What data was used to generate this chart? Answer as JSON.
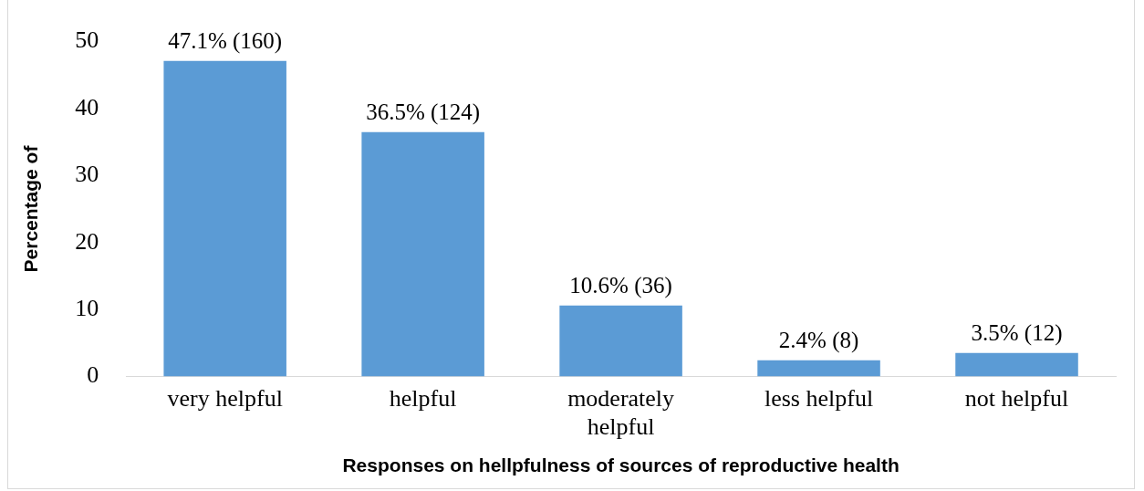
{
  "chart_data": {
    "type": "bar",
    "xlabel": "Responses on hellpfulness of sources of reproductive health",
    "ylabel": "Percentage of",
    "categories": [
      "very helpful",
      "helpful",
      "moderately helpful",
      "less helpful",
      "not helpful"
    ],
    "values": [
      47.1,
      36.5,
      10.6,
      2.4,
      3.5
    ],
    "value_labels": [
      "47.1% (160)",
      "36.5% (124)",
      "10.6% (36)",
      "2.4% (8)",
      "3.5% (12)"
    ],
    "color": "#5b9bd5",
    "ylim": [
      0,
      50
    ],
    "yticks": [
      0,
      10,
      20,
      30,
      40,
      50
    ],
    "grid": false,
    "legend": false
  }
}
